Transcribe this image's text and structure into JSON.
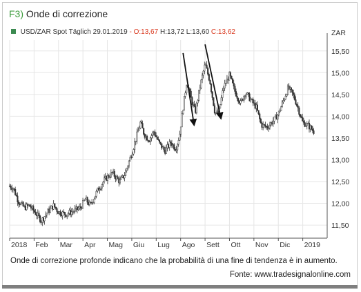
{
  "figure": {
    "number": "F3)",
    "title": "Onde di correzione",
    "caption": "Onde di correzione profonde indicano che la probabilità di una fine di tendenza è in aumento.",
    "source": "Fonte: www.tradesignalonline.com"
  },
  "legend": {
    "instrument": "USD/ZAR Spot Täglich",
    "date": "29.01.2019",
    "ohlc": "O:13,67 H:13,72 L:13,60 C:13,62",
    "open_text": "- O:13,67",
    "hlc_text": "H:13,72 L:13,60",
    "close_text": "C:13,62",
    "marker_color": "#3b8a50"
  },
  "colors": {
    "accent": "#3c9b3c",
    "candle": "#333333",
    "arrow": "#111111",
    "grid": "#e6e6e6",
    "close": "#d9381e"
  },
  "chart_data": {
    "type": "candlestick",
    "title": "",
    "ylabel": "ZAR",
    "ylim": [
      11.2,
      15.75
    ],
    "yticks": [
      "15,50",
      "15,00",
      "14,50",
      "14,00",
      "13,50",
      "13,00",
      "12,50",
      "12,00",
      "11,50"
    ],
    "ytick_values": [
      15.5,
      15.0,
      14.5,
      14.0,
      13.5,
      13.0,
      12.5,
      12.0,
      11.5
    ],
    "xticks": [
      "2018",
      "Feb",
      "Mar",
      "Apr",
      "Mag",
      "Giu",
      "Lug",
      "Ago",
      "Sett",
      "Ott",
      "Nov",
      "Dic",
      "2019"
    ],
    "xtick_months": [
      0,
      1,
      2,
      3,
      4,
      5,
      6,
      7,
      8,
      9,
      10,
      11,
      12
    ],
    "grid": true,
    "close_path": [
      [
        0,
        12.4
      ],
      [
        0.15,
        12.35
      ],
      [
        0.35,
        12.05
      ],
      [
        0.6,
        11.9
      ],
      [
        0.8,
        11.95
      ],
      [
        1.1,
        11.75
      ],
      [
        1.3,
        11.6
      ],
      [
        1.55,
        11.8
      ],
      [
        1.8,
        11.95
      ],
      [
        2.0,
        11.8
      ],
      [
        2.3,
        11.75
      ],
      [
        2.6,
        11.82
      ],
      [
        2.9,
        11.9
      ],
      [
        3.1,
        12.1
      ],
      [
        3.3,
        11.95
      ],
      [
        3.6,
        12.3
      ],
      [
        3.9,
        12.55
      ],
      [
        4.2,
        12.7
      ],
      [
        4.5,
        12.5
      ],
      [
        4.7,
        12.65
      ],
      [
        5.0,
        13.15
      ],
      [
        5.2,
        13.55
      ],
      [
        5.35,
        13.85
      ],
      [
        5.5,
        13.6
      ],
      [
        5.7,
        13.45
      ],
      [
        5.9,
        13.65
      ],
      [
        6.1,
        13.4
      ],
      [
        6.35,
        13.2
      ],
      [
        6.6,
        13.4
      ],
      [
        6.8,
        13.25
      ],
      [
        6.95,
        13.55
      ],
      [
        7.1,
        14.2
      ],
      [
        7.25,
        14.8
      ],
      [
        7.45,
        14.35
      ],
      [
        7.6,
        14.1
      ],
      [
        7.8,
        14.7
      ],
      [
        8.0,
        15.2
      ],
      [
        8.2,
        14.8
      ],
      [
        8.4,
        14.1
      ],
      [
        8.55,
        14.05
      ],
      [
        8.75,
        14.65
      ],
      [
        9.0,
        14.95
      ],
      [
        9.2,
        14.6
      ],
      [
        9.45,
        14.3
      ],
      [
        9.65,
        14.55
      ],
      [
        9.9,
        14.35
      ],
      [
        10.1,
        14.2
      ],
      [
        10.3,
        13.8
      ],
      [
        10.55,
        13.75
      ],
      [
        10.8,
        13.9
      ],
      [
        11.0,
        14.05
      ],
      [
        11.2,
        14.35
      ],
      [
        11.4,
        14.65
      ],
      [
        11.6,
        14.5
      ],
      [
        11.8,
        14.2
      ],
      [
        12.0,
        13.85
      ],
      [
        12.2,
        13.8
      ],
      [
        12.45,
        13.65
      ]
    ],
    "annotations": [
      {
        "type": "arrow",
        "from": [
          7.1,
          15.45
        ],
        "to": [
          7.55,
          13.8
        ]
      },
      {
        "type": "arrow",
        "from": [
          8.0,
          15.65
        ],
        "to": [
          8.65,
          13.95
        ]
      }
    ]
  }
}
